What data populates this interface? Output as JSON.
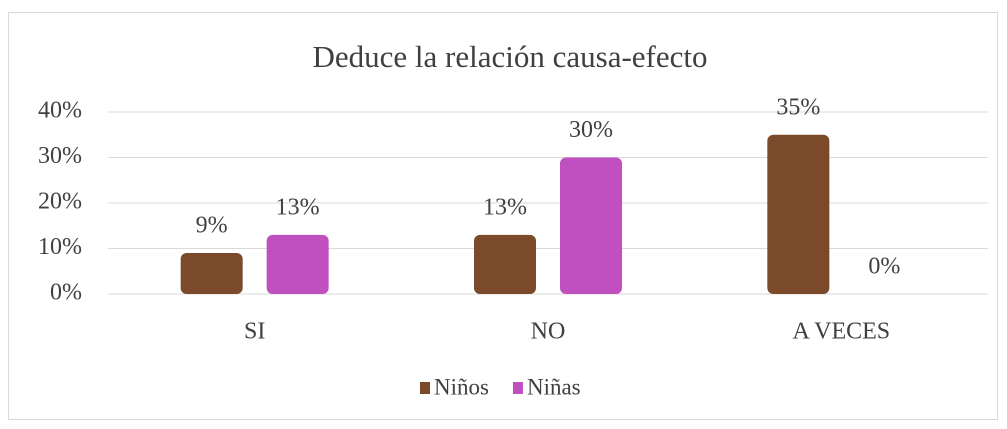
{
  "chart_data": {
    "type": "bar",
    "title": "Deduce la relación causa-efecto",
    "categories": [
      "SI",
      "NO",
      "A VECES"
    ],
    "series": [
      {
        "name": "Niños",
        "color": "#7a4a2a",
        "values": [
          9,
          13,
          35
        ],
        "value_labels": [
          "9%",
          "13%",
          "35%"
        ]
      },
      {
        "name": "Niñas",
        "color": "#c04fbf",
        "values": [
          13,
          30,
          0
        ],
        "value_labels": [
          "13%",
          "30%",
          "0%"
        ]
      }
    ],
    "ylim": [
      0,
      40
    ],
    "yticks": [
      {
        "value": 0,
        "label": "0%"
      },
      {
        "value": 10,
        "label": "10%"
      },
      {
        "value": 20,
        "label": "20%"
      },
      {
        "value": 30,
        "label": "30%"
      },
      {
        "value": 40,
        "label": "40%"
      }
    ],
    "grid": true,
    "legend": "bottom"
  }
}
